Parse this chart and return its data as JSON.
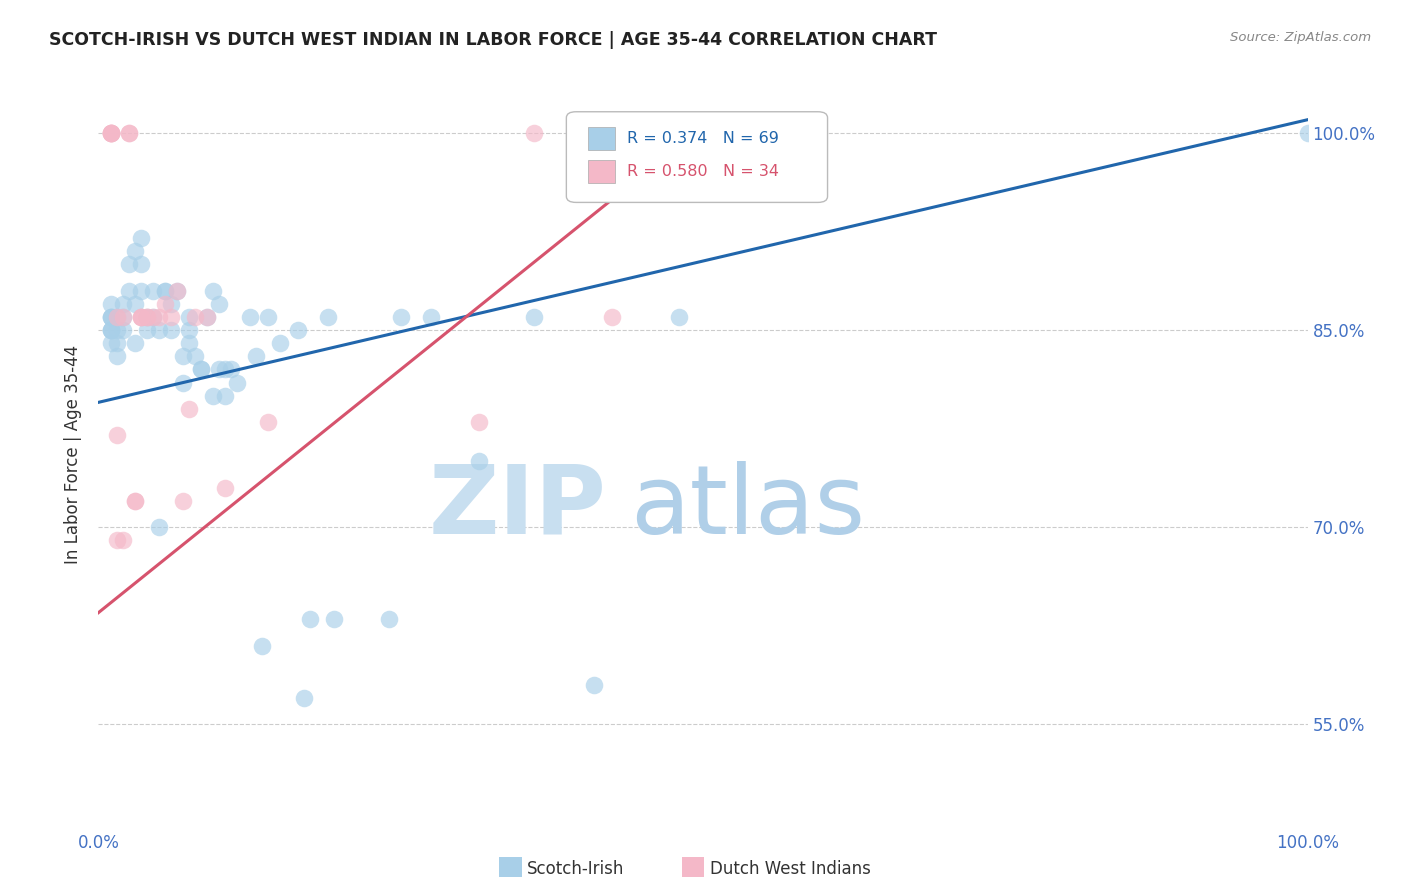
{
  "title": "SCOTCH-IRISH VS DUTCH WEST INDIAN IN LABOR FORCE | AGE 35-44 CORRELATION CHART",
  "source": "Source: ZipAtlas.com",
  "ylabel": "In Labor Force | Age 35-44",
  "ytick_labels": [
    "100.0%",
    "85.0%",
    "70.0%",
    "55.0%"
  ],
  "ytick_values": [
    1.0,
    0.85,
    0.7,
    0.55
  ],
  "xlim": [
    0.0,
    1.0
  ],
  "ylim": [
    0.47,
    1.04
  ],
  "legend1_label": "Scotch-Irish",
  "legend2_label": "Dutch West Indians",
  "R_blue": 0.374,
  "N_blue": 69,
  "R_pink": 0.58,
  "N_pink": 34,
  "color_blue": "#a8cfe8",
  "color_pink": "#f4b8c8",
  "line_color_blue": "#2166ac",
  "line_color_pink": "#d6536d",
  "background_color": "#ffffff",
  "watermark_color_zip": "#c8dff0",
  "watermark_color_atlas": "#b0cfe8",
  "blue_x": [
    0.01,
    0.01,
    0.01,
    0.01,
    0.01,
    0.01,
    0.01,
    0.01,
    0.015,
    0.015,
    0.015,
    0.015,
    0.02,
    0.02,
    0.02,
    0.025,
    0.025,
    0.03,
    0.03,
    0.03,
    0.035,
    0.035,
    0.035,
    0.04,
    0.04,
    0.045,
    0.045,
    0.05,
    0.05,
    0.055,
    0.055,
    0.06,
    0.06,
    0.065,
    0.07,
    0.07,
    0.075,
    0.075,
    0.075,
    0.08,
    0.085,
    0.085,
    0.09,
    0.095,
    0.095,
    0.1,
    0.1,
    0.105,
    0.105,
    0.11,
    0.115,
    0.125,
    0.13,
    0.135,
    0.14,
    0.15,
    0.165,
    0.17,
    0.175,
    0.19,
    0.195,
    0.24,
    0.25,
    0.275,
    0.315,
    0.36,
    0.41,
    0.48,
    1.0
  ],
  "blue_y": [
    0.86,
    0.86,
    0.87,
    0.86,
    0.85,
    0.84,
    0.85,
    0.85,
    0.86,
    0.85,
    0.84,
    0.83,
    0.85,
    0.86,
    0.87,
    0.88,
    0.9,
    0.87,
    0.91,
    0.84,
    0.9,
    0.92,
    0.88,
    0.86,
    0.85,
    0.86,
    0.88,
    0.85,
    0.7,
    0.88,
    0.88,
    0.87,
    0.85,
    0.88,
    0.81,
    0.83,
    0.85,
    0.84,
    0.86,
    0.83,
    0.82,
    0.82,
    0.86,
    0.88,
    0.8,
    0.87,
    0.82,
    0.82,
    0.8,
    0.82,
    0.81,
    0.86,
    0.83,
    0.61,
    0.86,
    0.84,
    0.85,
    0.57,
    0.63,
    0.86,
    0.63,
    0.63,
    0.86,
    0.86,
    0.75,
    0.86,
    0.58,
    0.86,
    1.0
  ],
  "pink_x": [
    0.01,
    0.01,
    0.01,
    0.01,
    0.01,
    0.015,
    0.015,
    0.015,
    0.02,
    0.02,
    0.025,
    0.025,
    0.03,
    0.03,
    0.035,
    0.035,
    0.035,
    0.04,
    0.04,
    0.045,
    0.05,
    0.055,
    0.06,
    0.065,
    0.07,
    0.075,
    0.08,
    0.09,
    0.105,
    0.14,
    0.315,
    0.36,
    0.425,
    0.49
  ],
  "pink_y": [
    1.0,
    1.0,
    1.0,
    1.0,
    1.0,
    0.86,
    0.77,
    0.69,
    0.86,
    0.69,
    1.0,
    1.0,
    0.72,
    0.72,
    0.86,
    0.86,
    0.86,
    0.86,
    0.86,
    0.86,
    0.86,
    0.87,
    0.86,
    0.88,
    0.72,
    0.79,
    0.86,
    0.86,
    0.73,
    0.78,
    0.78,
    1.0,
    0.86,
    1.0
  ],
  "blue_line_x": [
    0.0,
    1.0
  ],
  "blue_line_y": [
    0.795,
    1.01
  ],
  "pink_line_x": [
    0.0,
    0.5
  ],
  "pink_line_y": [
    0.635,
    1.005
  ]
}
